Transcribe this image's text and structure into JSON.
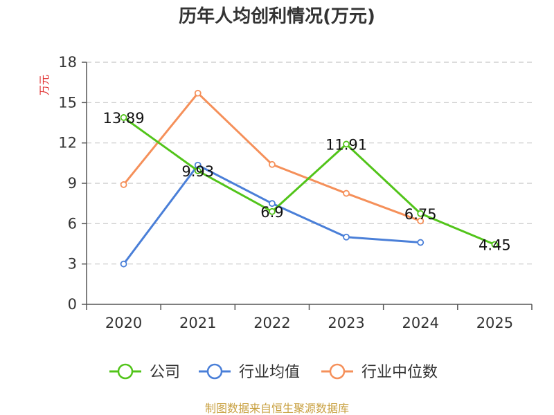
{
  "chart_data": {
    "type": "line",
    "title": "历年人均创利情况(万元)",
    "xlabel": "",
    "ylabel": "万元",
    "categories": [
      "2020",
      "2021",
      "2022",
      "2023",
      "2024",
      "2025"
    ],
    "ylim": [
      0,
      18
    ],
    "yticks": [
      0,
      3,
      6,
      9,
      12,
      15,
      18
    ],
    "grid": true,
    "legend_position": "bottom",
    "series": [
      {
        "name": "公司",
        "color": "#52c41a",
        "values": [
          13.89,
          9.93,
          6.9,
          11.91,
          6.75,
          4.45
        ],
        "labels": [
          "13.89",
          "9.93",
          "6.9",
          "11.91",
          "6.75",
          "4.45"
        ]
      },
      {
        "name": "行业均值",
        "color": "#4a7fd8",
        "values": [
          3.0,
          10.35,
          7.5,
          5.0,
          4.6,
          null
        ]
      },
      {
        "name": "行业中位数",
        "color": "#f5905a",
        "values": [
          8.9,
          15.7,
          10.4,
          8.25,
          6.2,
          null
        ]
      }
    ],
    "source": "制图数据来自恒生聚源数据库"
  }
}
